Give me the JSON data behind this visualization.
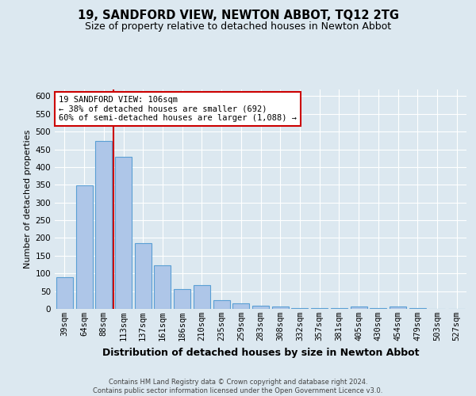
{
  "title": "19, SANDFORD VIEW, NEWTON ABBOT, TQ12 2TG",
  "subtitle": "Size of property relative to detached houses in Newton Abbot",
  "xlabel": "Distribution of detached houses by size in Newton Abbot",
  "ylabel": "Number of detached properties",
  "categories": [
    "39sqm",
    "64sqm",
    "88sqm",
    "113sqm",
    "137sqm",
    "161sqm",
    "186sqm",
    "210sqm",
    "235sqm",
    "259sqm",
    "283sqm",
    "308sqm",
    "332sqm",
    "357sqm",
    "381sqm",
    "405sqm",
    "430sqm",
    "454sqm",
    "479sqm",
    "503sqm",
    "527sqm"
  ],
  "values": [
    90,
    349,
    474,
    430,
    185,
    122,
    55,
    68,
    25,
    15,
    10,
    6,
    3,
    3,
    3,
    7,
    3,
    7,
    3,
    0,
    0
  ],
  "bar_color": "#aec6e8",
  "bar_edgecolor": "#5a9fd4",
  "bar_linewidth": 0.8,
  "property_line_x": 2.5,
  "property_line_color": "#cc0000",
  "annotation_text": "19 SANDFORD VIEW: 106sqm\n← 38% of detached houses are smaller (692)\n60% of semi-detached houses are larger (1,088) →",
  "annotation_box_color": "#ffffff",
  "annotation_box_edgecolor": "#cc0000",
  "ylim": [
    0,
    620
  ],
  "yticks": [
    0,
    50,
    100,
    150,
    200,
    250,
    300,
    350,
    400,
    450,
    500,
    550,
    600
  ],
  "background_color": "#dce8f0",
  "plot_background_color": "#dce8f0",
  "grid_color": "#ffffff",
  "title_fontsize": 10.5,
  "subtitle_fontsize": 9,
  "xlabel_fontsize": 9,
  "ylabel_fontsize": 8,
  "tick_fontsize": 7.5,
  "footer_text": "Contains HM Land Registry data © Crown copyright and database right 2024.\nContains public sector information licensed under the Open Government Licence v3.0."
}
